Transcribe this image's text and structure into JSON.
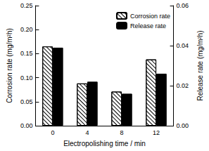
{
  "chart_data": {
    "type": "bar",
    "x_label": "Electropolishing time / min",
    "y_label": "Corrosion rate (mg/m²h)",
    "y2_label": "Release rate (mg/m²h)",
    "categories": [
      "0",
      "4",
      "8",
      "12"
    ],
    "series": [
      {
        "name": "Corrosion rate",
        "color": "#ffffff",
        "values": [
          0.165,
          0.088,
          0.071,
          0.138
        ]
      },
      {
        "name": "Release rate",
        "color": "#000000",
        "axis": "y2",
        "values": [
          0.039,
          0.022,
          0.016,
          0.026
        ]
      }
    ],
    "ylim": [
      0,
      0.25
    ],
    "yticks": [
      {
        "value": 0,
        "label": "0.00"
      },
      {
        "value": 0.05,
        "label": "0.05"
      },
      {
        "value": 0.1,
        "label": "0.10"
      },
      {
        "value": 0.15,
        "label": "0.15"
      },
      {
        "value": 0.2,
        "label": "0.20"
      },
      {
        "value": 0.25,
        "label": "0.25"
      }
    ],
    "y2lim": [
      0,
      0.06
    ],
    "y2ticks": [
      {
        "value": 0,
        "label": "0.00"
      },
      {
        "value": 0.02,
        "label": "0.02"
      },
      {
        "value": 0.04,
        "label": "0.04"
      },
      {
        "value": 0.06,
        "label": "0.06"
      }
    ],
    "legend": "top-right",
    "grid": false
  }
}
